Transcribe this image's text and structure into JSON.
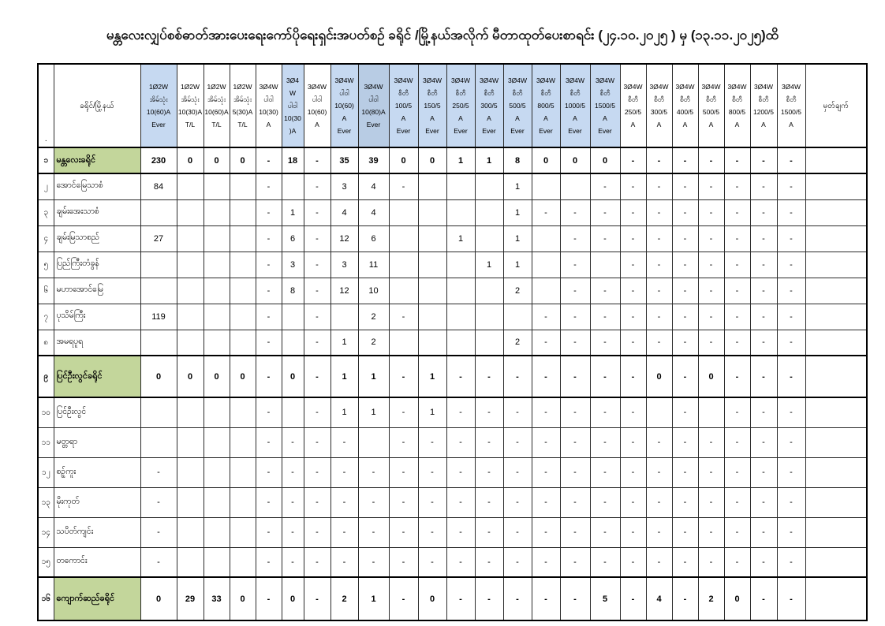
{
  "page": {
    "title": "မန္တလေးလျှပ်စစ်ဓာတ်အားပေးရေးကော်ပိုရေးရှင်းအပတ်စဉ် ခရိုင် /မြို့နယ်အလိုက် မီတာထုတ်ပေးစာရင်း (၂၄.၁၀.၂၀၂၅ ) မှ (၁၃.၁၁.၂၀၂၅)ထိ"
  },
  "table": {
    "corner_label": ".",
    "name_header": "ခရိုင်/မြို့နယ်",
    "remark_header": "မှတ်ချက်",
    "colors": {
      "header_blue": "#c6d9f1",
      "header_blue_dark": "#b8cce4",
      "district_green": "#c3d69b"
    },
    "columns": [
      {
        "id": "1p2w-home-10-60-ever",
        "lines": [
          "1Ø2W",
          "အိမ်သုံး",
          "10(60)A",
          "Ever"
        ],
        "hl": "blue"
      },
      {
        "id": "1p2w-home-10-30-tl",
        "lines": [
          "1Ø2W",
          "အိမ်သုံး",
          "10(30)A",
          "T/L"
        ],
        "hl": "none"
      },
      {
        "id": "1p2w-home-10-60-tl",
        "lines": [
          "1Ø2W",
          "အိမ်သုံး",
          "10(60)A",
          "T/L"
        ],
        "hl": "none"
      },
      {
        "id": "1p2w-home-5-30-tl",
        "lines": [
          "1Ø2W",
          "အိမ်သုံး",
          "5(30)A",
          "T/L"
        ],
        "hl": "none"
      },
      {
        "id": "3p4w-power-10-30",
        "lines": [
          "3Ø4W",
          "ပါဝါ",
          "10(30)",
          "A"
        ],
        "hl": "none"
      },
      {
        "id": "3p4w-power-10-30-b",
        "lines": [
          "3Ø4",
          "W",
          "ပါဝါ",
          "10(30",
          ")A"
        ],
        "hl": "blue"
      },
      {
        "id": "3p4w-power-10-60",
        "lines": [
          "3Ø4W",
          "ပါဝါ",
          "10(60)",
          "A"
        ],
        "hl": "none"
      },
      {
        "id": "3p4w-power-10-60-ever",
        "lines": [
          "3Ø4W",
          "ပါဝါ",
          "10(60)",
          "A",
          "Ever"
        ],
        "hl": "blue"
      },
      {
        "id": "3p4w-power-10-80-ever",
        "lines": [
          "3Ø4W",
          "ပါဝါ",
          "10(80)A",
          "Ever"
        ],
        "hl": "dark"
      },
      {
        "id": "3p4w-ct-100-5-ever",
        "lines": [
          "3Ø4W",
          "စီတီ",
          "100/5",
          "A",
          "Ever"
        ],
        "hl": "blue"
      },
      {
        "id": "3p4w-ct-150-5-ever",
        "lines": [
          "3Ø4W",
          "စီတီ",
          "150/5",
          "A",
          "Ever"
        ],
        "hl": "blue"
      },
      {
        "id": "3p4w-ct-250-5-ever",
        "lines": [
          "3Ø4W",
          "စီတီ",
          "250/5",
          "A",
          "Ever"
        ],
        "hl": "blue"
      },
      {
        "id": "3p4w-ct-300-5-ever",
        "lines": [
          "3Ø4W",
          "စီတီ",
          "300/5",
          "A",
          "Ever"
        ],
        "hl": "blue"
      },
      {
        "id": "3p4w-ct-500-5-ever",
        "lines": [
          "3Ø4W",
          "စီတီ",
          "500/5",
          "A",
          "Ever"
        ],
        "hl": "blue"
      },
      {
        "id": "3p4w-ct-800-5-ever",
        "lines": [
          "3Ø4W",
          "စီတီ",
          "800/5",
          "A",
          "Ever"
        ],
        "hl": "blue"
      },
      {
        "id": "3p4w-ct-1000-5-ever",
        "lines": [
          "3Ø4W",
          "စီတီ",
          "1000/5",
          "A",
          "Ever"
        ],
        "hl": "blue"
      },
      {
        "id": "3p4w-ct-1500-5-ever",
        "lines": [
          "3Ø4W",
          "စီတီ",
          "1500/5",
          "A",
          "Ever"
        ],
        "hl": "blue"
      },
      {
        "id": "3p4w-ct-250-5",
        "lines": [
          "3Ø4W",
          "စီတီ",
          "250/5",
          "A"
        ],
        "hl": "none"
      },
      {
        "id": "3p4w-ct-300-5",
        "lines": [
          "3Ø4W",
          "စီတီ",
          "300/5",
          "A"
        ],
        "hl": "none"
      },
      {
        "id": "3p4w-ct-400-5",
        "lines": [
          "3Ø4W",
          "စီတီ",
          "400/5",
          "A"
        ],
        "hl": "none"
      },
      {
        "id": "3p4w-ct-500-5",
        "lines": [
          "3Ø4W",
          "စီတီ",
          "500/5",
          "A"
        ],
        "hl": "none"
      },
      {
        "id": "3p4w-ct-800-5",
        "lines": [
          "3Ø4W",
          "စီတီ",
          "800/5",
          "A"
        ],
        "hl": "none"
      },
      {
        "id": "3p4w-ct-1200-5",
        "lines": [
          "3Ø4W",
          "စီတီ",
          "1200/5",
          "A"
        ],
        "hl": "none"
      },
      {
        "id": "3p4w-ct-1500-5",
        "lines": [
          "3Ø4W",
          "စီတီ",
          "1500/5",
          "A"
        ],
        "hl": "none"
      }
    ],
    "rows": [
      {
        "no": "၁",
        "name": "မန္တလေးခရိုင်",
        "type": "district",
        "values": [
          "230",
          "0",
          "0",
          "0",
          "-",
          "18",
          "-",
          "35",
          "39",
          "0",
          "0",
          "1",
          "1",
          "8",
          "0",
          "0",
          "0",
          "-",
          "-",
          "-",
          "-",
          "-",
          "-",
          "-"
        ],
        "remark": ""
      },
      {
        "no": "၂",
        "name": "အောင်မြေသာစံ",
        "type": "township",
        "values": [
          "84",
          "",
          "",
          "",
          "-",
          "",
          "-",
          "3",
          "4",
          "-",
          "",
          "",
          "",
          "1",
          "",
          "",
          "-",
          "-",
          "-",
          "-",
          "-",
          "-",
          "-",
          "-"
        ],
        "remark": ""
      },
      {
        "no": "၃",
        "name": "ချမ်းအေးသာစံ",
        "type": "township",
        "values": [
          "",
          "",
          "",
          "",
          "-",
          "1",
          "-",
          "4",
          "4",
          "",
          "",
          "",
          "",
          "1",
          "-",
          "-",
          "-",
          "-",
          "-",
          "-",
          "-",
          "-",
          "-",
          "-"
        ],
        "remark": ""
      },
      {
        "no": "၄",
        "name": "ချမ်းမြသာစည်",
        "type": "township",
        "values": [
          "27",
          "",
          "",
          "",
          "-",
          "6",
          "-",
          "12",
          "6",
          "",
          "",
          "1",
          "",
          "1",
          "",
          "-",
          "-",
          "-",
          "-",
          "-",
          "-",
          "-",
          "-",
          "-"
        ],
        "remark": ""
      },
      {
        "no": "၅",
        "name": "ပြည်ကြီးတံခွန်",
        "type": "township",
        "values": [
          "",
          "",
          "",
          "",
          "-",
          "3",
          "-",
          "3",
          "11",
          "",
          "",
          "",
          "1",
          "1",
          "",
          "-",
          "",
          "-",
          "-",
          "-",
          "-",
          "-",
          "-",
          "-"
        ],
        "remark": ""
      },
      {
        "no": "၆",
        "name": "မဟာအောင်မြေ",
        "type": "township",
        "values": [
          "",
          "",
          "",
          "",
          "-",
          "8",
          "-",
          "12",
          "10",
          "",
          "",
          "",
          "",
          "2",
          "",
          "-",
          "-",
          "-",
          "-",
          "-",
          "-",
          "-",
          "-",
          "-"
        ],
        "remark": ""
      },
      {
        "no": "၇",
        "name": "ပုသိမ်ကြီး",
        "type": "township",
        "values": [
          "119",
          "",
          "",
          "",
          "-",
          "",
          "-",
          "",
          "2",
          "-",
          "",
          "",
          "",
          "",
          "-",
          "-",
          "-",
          "-",
          "-",
          "-",
          "-",
          "-",
          "-",
          "-"
        ],
        "remark": ""
      },
      {
        "no": "၈",
        "name": "အမရပူရ",
        "type": "township",
        "values": [
          "",
          "",
          "",
          "",
          "-",
          "",
          "-",
          "1",
          "2",
          "",
          "",
          "",
          "",
          "2",
          "-",
          "-",
          "-",
          "-",
          "-",
          "-",
          "-",
          "-",
          "-",
          "-"
        ],
        "remark": ""
      },
      {
        "no": "၉",
        "name": "ပြင်ဦးလွင်ခရိုင်",
        "type": "district",
        "values": [
          "0",
          "0",
          "0",
          "0",
          "-",
          "0",
          "-",
          "1",
          "1",
          "-",
          "1",
          "-",
          "-",
          "-",
          "-",
          "-",
          "-",
          "-",
          "0",
          "-",
          "0",
          "-",
          "-",
          "-"
        ],
        "remark": ""
      },
      {
        "no": "၁၀",
        "name": "ပြင်ဦးလွင်",
        "type": "township",
        "values": [
          "",
          "",
          "",
          "",
          "-",
          "",
          "-",
          "1",
          "1",
          "-",
          "1",
          "-",
          "-",
          "-",
          "-",
          "-",
          "-",
          "-",
          "",
          "-",
          "",
          "-",
          "-",
          "-"
        ],
        "remark": ""
      },
      {
        "no": "၁၁",
        "name": "မတ္တရာ",
        "type": "township",
        "values": [
          "",
          "",
          "",
          "",
          "-",
          "-",
          "-",
          "-",
          "",
          "-",
          "-",
          "-",
          "-",
          "-",
          "-",
          "-",
          "-",
          "-",
          "-",
          "-",
          "-",
          "-",
          "-",
          "-"
        ],
        "remark": ""
      },
      {
        "no": "၁၂",
        "name": "စဉ့်ကူး",
        "type": "township",
        "values": [
          "-",
          "",
          "",
          "",
          "-",
          "-",
          "-",
          "-",
          "-",
          "-",
          "-",
          "-",
          "-",
          "-",
          "-",
          "-",
          "-",
          "-",
          "-",
          "-",
          "-",
          "-",
          "-",
          "-"
        ],
        "remark": ""
      },
      {
        "no": "၁၃",
        "name": "မိုးကုတ်",
        "type": "township",
        "values": [
          "-",
          "",
          "",
          "",
          "-",
          "-",
          "-",
          "-",
          "-",
          "-",
          "-",
          "-",
          "-",
          "-",
          "-",
          "-",
          "-",
          "-",
          "-",
          "-",
          "-",
          "-",
          "-",
          "-"
        ],
        "remark": ""
      },
      {
        "no": "၁၄",
        "name": "သပိတ်ကျင်း",
        "type": "township",
        "values": [
          "-",
          "",
          "",
          "",
          "-",
          "-",
          "-",
          "-",
          "-",
          "-",
          "-",
          "-",
          "-",
          "-",
          "-",
          "-",
          "-",
          "-",
          "-",
          "-",
          "-",
          "-",
          "-",
          "-"
        ],
        "remark": ""
      },
      {
        "no": "၁၅",
        "name": "တကောင်း",
        "type": "township",
        "values": [
          "-",
          "",
          "",
          "",
          "-",
          "-",
          "-",
          "-",
          "-",
          "-",
          "-",
          "-",
          "-",
          "-",
          "-",
          "-",
          "-",
          "-",
          "-",
          "-",
          "-",
          "-",
          "-",
          "-"
        ],
        "remark": ""
      },
      {
        "no": "၁၆",
        "name": "ကျောက်ဆည်ခရိုင်",
        "type": "district",
        "values": [
          "0",
          "29",
          "33",
          "0",
          "-",
          "0",
          "-",
          "2",
          "1",
          "-",
          "0",
          "-",
          "-",
          "-",
          "-",
          "-",
          "5",
          "-",
          "4",
          "-",
          "2",
          "0",
          "-",
          "-"
        ],
        "remark": ""
      }
    ]
  }
}
